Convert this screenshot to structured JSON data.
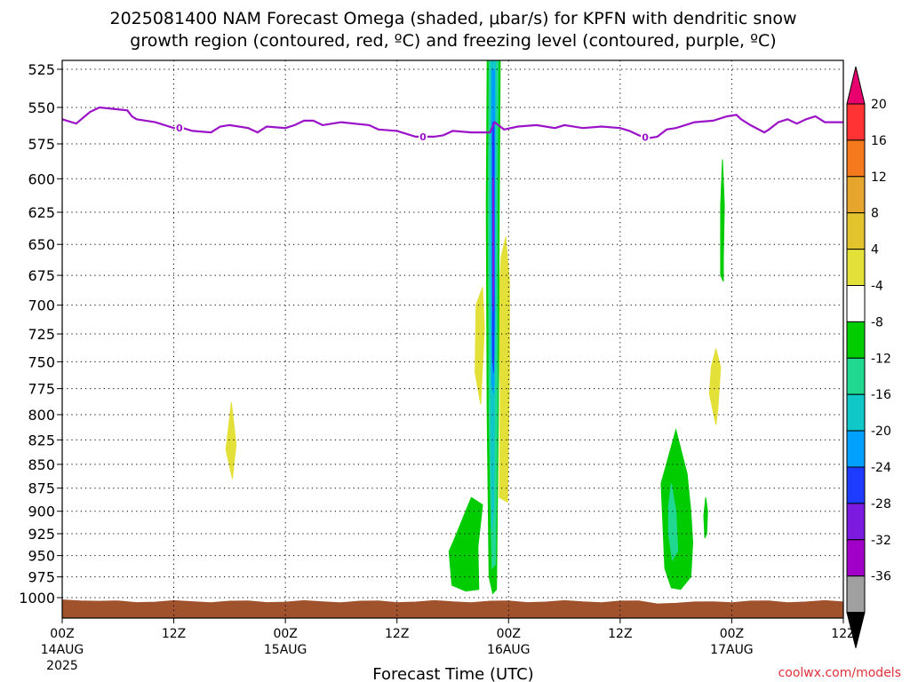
{
  "title": {
    "line1": "2025081400 NAM Forecast Omega (shaded, μbar/s) for KPFN with dendritic snow",
    "line2": "growth region (contoured, red, ºC) and freezing level (contoured, purple, ºC)"
  },
  "credit": "coolwx.com/models",
  "chart_data": {
    "type": "time-height contour",
    "xlabel": "Forecast Time (UTC)",
    "x_range_hours": [
      0,
      84
    ],
    "x_ticks": [
      {
        "h": 0,
        "line1": "00Z",
        "line2": "14AUG",
        "line3": "2025"
      },
      {
        "h": 12,
        "line1": "12Z",
        "line2": "",
        "line3": ""
      },
      {
        "h": 24,
        "line1": "00Z",
        "line2": "15AUG",
        "line3": ""
      },
      {
        "h": 36,
        "line1": "12Z",
        "line2": "",
        "line3": ""
      },
      {
        "h": 48,
        "line1": "00Z",
        "line2": "16AUG",
        "line3": ""
      },
      {
        "h": 60,
        "line1": "12Z",
        "line2": "",
        "line3": ""
      },
      {
        "h": 72,
        "line1": "00Z",
        "line2": "17AUG",
        "line3": ""
      },
      {
        "h": 84,
        "line1": "12Z",
        "line2": "",
        "line3": ""
      }
    ],
    "y_scale": "log pressure",
    "y_range_mb": [
      1010,
      515
    ],
    "y_ticks": [
      "525",
      "550",
      "575",
      "600",
      "625",
      "650",
      "675",
      "700",
      "725",
      "750",
      "775",
      "800",
      "825",
      "850",
      "875",
      "900",
      "925",
      "950",
      "975",
      "1000"
    ],
    "grid": true,
    "surface_pressure_mb": 1005,
    "surface_color": "#a0522d",
    "colorbar": {
      "labels": [
        "20",
        "16",
        "12",
        "8",
        "4",
        "-4",
        "-8",
        "-12",
        "-16",
        "-20",
        "-24",
        "-28",
        "-32",
        "-36"
      ],
      "colors": [
        "#ff3333",
        "#f57a1e",
        "#e6a52c",
        "#e3c42e",
        "#e4e03a",
        "#ffffff",
        "#00cc00",
        "#20d890",
        "#10c8c8",
        "#00a0ff",
        "#1e3cff",
        "#7c1ae0",
        "#a000c8",
        "#a0a0a0"
      ],
      "top_arrow_color": "#e8006e",
      "bottom_arrow_color": "#000000"
    },
    "freezing_level": {
      "color": "#9b12c8",
      "label": "0",
      "label_hours": [
        12.6,
        38.8,
        62.7
      ],
      "points": [
        [
          0,
          558
        ],
        [
          1.5,
          561
        ],
        [
          3,
          553
        ],
        [
          4,
          550
        ],
        [
          5.5,
          551
        ],
        [
          7,
          552
        ],
        [
          7.5,
          556
        ],
        [
          8,
          558
        ],
        [
          10,
          560
        ],
        [
          12,
          564
        ],
        [
          13,
          564
        ],
        [
          14,
          566
        ],
        [
          16,
          567
        ],
        [
          17,
          563
        ],
        [
          18,
          562
        ],
        [
          20,
          564
        ],
        [
          21,
          567
        ],
        [
          22,
          563
        ],
        [
          24,
          564
        ],
        [
          25,
          562
        ],
        [
          26,
          559
        ],
        [
          27,
          559
        ],
        [
          28,
          562
        ],
        [
          30,
          560
        ],
        [
          33,
          562
        ],
        [
          34,
          565
        ],
        [
          36,
          566
        ],
        [
          37,
          568
        ],
        [
          38,
          570
        ],
        [
          40,
          570
        ],
        [
          41,
          569
        ],
        [
          42,
          566
        ],
        [
          44,
          567
        ],
        [
          46,
          567
        ],
        [
          46.5,
          560
        ],
        [
          47.5,
          565
        ],
        [
          49,
          563
        ],
        [
          51,
          562
        ],
        [
          53,
          564
        ],
        [
          54,
          562
        ],
        [
          56,
          564
        ],
        [
          58,
          563
        ],
        [
          60,
          564
        ],
        [
          61,
          566
        ],
        [
          62,
          569
        ],
        [
          63,
          571
        ],
        [
          64,
          570
        ],
        [
          65,
          565
        ],
        [
          66,
          564
        ],
        [
          68,
          560
        ],
        [
          70,
          559
        ],
        [
          71.5,
          556
        ],
        [
          72.5,
          555
        ],
        [
          73,
          558
        ],
        [
          74,
          562
        ],
        [
          75.5,
          567
        ],
        [
          76,
          565
        ],
        [
          77,
          560
        ],
        [
          78,
          558
        ],
        [
          79,
          561
        ],
        [
          80,
          558
        ],
        [
          81,
          556
        ],
        [
          82,
          560
        ],
        [
          84,
          560
        ]
      ]
    },
    "omega_regions": [
      {
        "value": 4,
        "color": "#e4e03a",
        "points": [
          [
            18.2,
            788
          ],
          [
            18.7,
            830
          ],
          [
            18.3,
            865
          ],
          [
            17.6,
            835
          ]
        ]
      },
      {
        "value": 4,
        "color": "#e4e03a",
        "points": [
          [
            44.5,
            700
          ],
          [
            45.2,
            685
          ],
          [
            45.4,
            720
          ],
          [
            45.0,
            790
          ],
          [
            44.4,
            760
          ]
        ]
      },
      {
        "value": 4,
        "color": "#e4e03a",
        "points": [
          [
            47.7,
            644
          ],
          [
            48.1,
            680
          ],
          [
            48.1,
            760
          ],
          [
            47.9,
            890
          ],
          [
            47.0,
            885
          ],
          [
            47.1,
            780
          ],
          [
            46.9,
            700
          ],
          [
            47.2,
            660
          ]
        ]
      },
      {
        "value": 4,
        "color": "#e4e03a",
        "points": [
          [
            70.3,
            738
          ],
          [
            70.8,
            755
          ],
          [
            70.5,
            795
          ],
          [
            70.3,
            810
          ],
          [
            69.6,
            780
          ],
          [
            69.8,
            755
          ]
        ]
      },
      {
        "value": -4,
        "color": "#00cc00",
        "points": [
          [
            71.0,
            586
          ],
          [
            71.2,
            620
          ],
          [
            71.1,
            660
          ],
          [
            71.1,
            680
          ],
          [
            70.8,
            675
          ],
          [
            70.8,
            620
          ]
        ]
      },
      {
        "value": -4,
        "color": "#00cc00",
        "points": [
          [
            44.0,
            885
          ],
          [
            45.2,
            893
          ],
          [
            44.7,
            940
          ],
          [
            44.8,
            990
          ],
          [
            43.4,
            992
          ],
          [
            41.9,
            985
          ],
          [
            41.6,
            945
          ],
          [
            42.1,
            933
          ]
        ]
      },
      {
        "value": -4,
        "color": "#00cc00",
        "points": [
          [
            66.0,
            815
          ],
          [
            67.2,
            860
          ],
          [
            67.6,
            900
          ],
          [
            67.8,
            935
          ],
          [
            67.6,
            975
          ],
          [
            66.5,
            990
          ],
          [
            65.5,
            988
          ],
          [
            64.8,
            965
          ],
          [
            64.4,
            870
          ],
          [
            65.4,
            835
          ]
        ]
      },
      {
        "value": -4,
        "color": "#00cc00",
        "points": [
          [
            69.2,
            885
          ],
          [
            69.4,
            900
          ],
          [
            69.3,
            925
          ],
          [
            69.1,
            930
          ],
          [
            69.0,
            905
          ]
        ]
      },
      {
        "value": -4,
        "color": "#00cc00",
        "points": [
          [
            45.7,
            515
          ],
          [
            47.1,
            515
          ],
          [
            47.0,
            620
          ],
          [
            46.9,
            800
          ],
          [
            46.7,
            990
          ],
          [
            46.3,
            995
          ],
          [
            45.9,
            975
          ],
          [
            45.7,
            800
          ],
          [
            45.6,
            620
          ]
        ]
      },
      {
        "value": -8,
        "color": "#20d890",
        "points": [
          [
            45.9,
            515
          ],
          [
            46.9,
            515
          ],
          [
            46.8,
            620
          ],
          [
            46.8,
            800
          ],
          [
            46.6,
            960
          ],
          [
            46.2,
            965
          ],
          [
            45.9,
            800
          ],
          [
            45.8,
            620
          ]
        ]
      },
      {
        "value": -8,
        "color": "#20d890",
        "points": [
          [
            65.5,
            870
          ],
          [
            66.0,
            900
          ],
          [
            66.2,
            945
          ],
          [
            65.6,
            955
          ],
          [
            65.2,
            925
          ],
          [
            65.2,
            895
          ]
        ]
      },
      {
        "value": -12,
        "color": "#10c8c8",
        "points": [
          [
            46.1,
            515
          ],
          [
            46.6,
            515
          ],
          [
            46.6,
            700
          ],
          [
            46.4,
            900
          ],
          [
            46.2,
            920
          ],
          [
            46.1,
            820
          ],
          [
            46.0,
            650
          ]
        ]
      },
      {
        "value": -16,
        "color": "#00a0ff",
        "points": [
          [
            46.2,
            525
          ],
          [
            46.5,
            525
          ],
          [
            46.5,
            700
          ],
          [
            46.4,
            780
          ],
          [
            46.2,
            770
          ],
          [
            46.2,
            640
          ]
        ]
      },
      {
        "value": -24,
        "color": "#1e3cff",
        "points": [
          [
            46.27,
            560
          ],
          [
            46.43,
            560
          ],
          [
            46.45,
            700
          ],
          [
            46.4,
            760
          ],
          [
            46.28,
            745
          ],
          [
            46.27,
            640
          ]
        ]
      },
      {
        "value": -28,
        "color": "#7c1ae0",
        "points": [
          [
            46.3,
            600
          ],
          [
            46.4,
            600
          ],
          [
            46.42,
            680
          ],
          [
            46.36,
            705
          ],
          [
            46.31,
            680
          ]
        ]
      }
    ]
  }
}
